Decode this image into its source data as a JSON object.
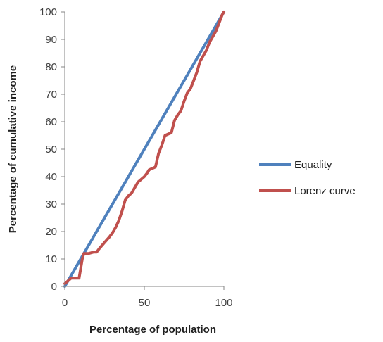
{
  "chart_data": {
    "type": "line",
    "title": "",
    "xlabel": "Percentage of population",
    "ylabel": "Percentage of cumulative income",
    "xlim": [
      0,
      100
    ],
    "ylim": [
      0,
      100
    ],
    "x_ticks": [
      0,
      50,
      100
    ],
    "y_ticks": [
      0,
      10,
      20,
      30,
      40,
      50,
      60,
      70,
      80,
      90,
      100
    ],
    "grid": false,
    "legend_position": "right",
    "series": [
      {
        "name": "Equality",
        "color": "#4f81bd",
        "points": [
          [
            0,
            0
          ],
          [
            100,
            100
          ]
        ]
      },
      {
        "name": "Lorenz curve",
        "color": "#c0504d",
        "points": [
          [
            0,
            1
          ],
          [
            2,
            2
          ],
          [
            4,
            3
          ],
          [
            7,
            3
          ],
          [
            9,
            3
          ],
          [
            11,
            10
          ],
          [
            12,
            12
          ],
          [
            15,
            12
          ],
          [
            18,
            12.5
          ],
          [
            20,
            12.5
          ],
          [
            22,
            14
          ],
          [
            25,
            16
          ],
          [
            28,
            18
          ],
          [
            30,
            19.5
          ],
          [
            32,
            21.5
          ],
          [
            34,
            24
          ],
          [
            36,
            27.5
          ],
          [
            38,
            31.5
          ],
          [
            40,
            33
          ],
          [
            42,
            34
          ],
          [
            44,
            36
          ],
          [
            46,
            38
          ],
          [
            48,
            39
          ],
          [
            50,
            40
          ],
          [
            52,
            41.5
          ],
          [
            53,
            42.5
          ],
          [
            55,
            43
          ],
          [
            57,
            43.5
          ],
          [
            59,
            48.5
          ],
          [
            61,
            51.5
          ],
          [
            63,
            55
          ],
          [
            65,
            55.5
          ],
          [
            67,
            56
          ],
          [
            69,
            60.5
          ],
          [
            71,
            62.5
          ],
          [
            73,
            64
          ],
          [
            75,
            67.5
          ],
          [
            77,
            70.5
          ],
          [
            79,
            72
          ],
          [
            81,
            75
          ],
          [
            83,
            78
          ],
          [
            85,
            82
          ],
          [
            87,
            84
          ],
          [
            89,
            86
          ],
          [
            91,
            89
          ],
          [
            93,
            91
          ],
          [
            95,
            93
          ],
          [
            97,
            96
          ],
          [
            99,
            99
          ],
          [
            100,
            100
          ]
        ]
      }
    ]
  }
}
